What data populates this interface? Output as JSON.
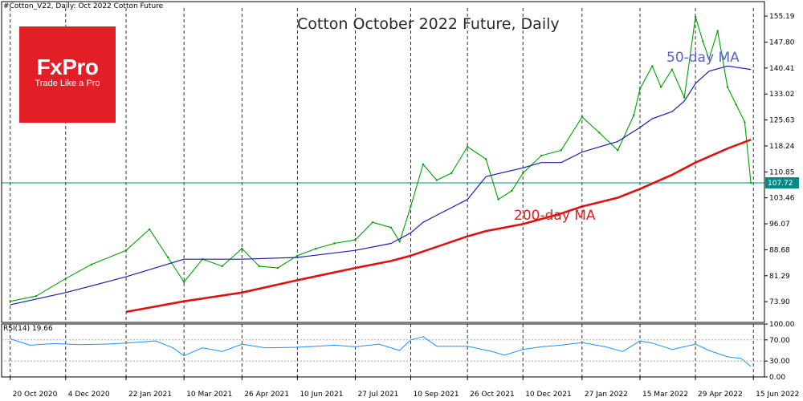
{
  "header": {
    "symbol_line": "#Cotton_V22, Daily:  Oct 2022 Cotton Future"
  },
  "logo": {
    "word": "FxPro",
    "tagline": "Trade Like a Pro",
    "color": "#e41e26"
  },
  "labels": {
    "title": "Cotton October 2022 Future, Daily",
    "ma50": "50-day MA",
    "ma200": "200-day MA",
    "rsi": "RSI(14) 19.66",
    "current_price": "107.72"
  },
  "colors": {
    "price": "#00a000",
    "ma50": "#1c1cb4",
    "ma200": "#e01010",
    "rsi": "#1e90ff",
    "hline": "#008b8b"
  },
  "chart_data": {
    "type": "line",
    "title": "Cotton October 2022 Future, Daily",
    "x_ticks": [
      "20 Oct 2020",
      "4 Dec 2020",
      "22 Jan 2021",
      "10 Mar 2021",
      "26 Apr 2021",
      "10 Jun 2021",
      "27 Jul 2021",
      "10 Sep 2021",
      "26 Oct 2021",
      "10 Dec 2021",
      "27 Jan 2022",
      "15 Mar 2022",
      "29 Apr 2022",
      "15 Jun 2022"
    ],
    "price_ticks": [
      155.19,
      147.8,
      140.41,
      133.02,
      125.63,
      118.24,
      110.85,
      103.46,
      96.07,
      88.68,
      81.29,
      73.9
    ],
    "price_ylim": [
      68.0,
      157.5
    ],
    "current_price": 107.72,
    "rsi_ticks": [
      100.0,
      70.0,
      30.0,
      0.0
    ],
    "rsi_ylim": [
      0,
      100
    ],
    "series": [
      {
        "name": "Cotton",
        "x": [
          "2020-10-20",
          "2020-11-10",
          "2020-12-04",
          "2020-12-25",
          "2021-01-22",
          "2021-02-10",
          "2021-02-25",
          "2021-03-10",
          "2021-03-25",
          "2021-04-10",
          "2021-04-26",
          "2021-05-10",
          "2021-05-25",
          "2021-06-10",
          "2021-06-25",
          "2021-07-10",
          "2021-07-27",
          "2021-08-10",
          "2021-08-25",
          "2021-09-01",
          "2021-09-10",
          "2021-09-20",
          "2021-10-01",
          "2021-10-13",
          "2021-10-26",
          "2021-11-10",
          "2021-11-20",
          "2021-12-01",
          "2021-12-10",
          "2021-12-25",
          "2022-01-10",
          "2022-01-27",
          "2022-02-10",
          "2022-02-25",
          "2022-03-10",
          "2022-03-15",
          "2022-03-25",
          "2022-04-01",
          "2022-04-10",
          "2022-04-20",
          "2022-04-29",
          "2022-05-05",
          "2022-05-10",
          "2022-05-17",
          "2022-05-25",
          "2022-06-01",
          "2022-06-08",
          "2022-06-13"
        ],
        "values": [
          74.0,
          75.5,
          80.5,
          84.5,
          88.5,
          94.5,
          86.5,
          79.5,
          86.0,
          84.0,
          89.0,
          84.0,
          83.5,
          87.0,
          89.0,
          90.5,
          91.5,
          96.5,
          95.0,
          91.0,
          101.0,
          113.0,
          108.5,
          110.5,
          118.0,
          114.5,
          103.0,
          105.5,
          110.5,
          115.5,
          117.0,
          126.5,
          122.0,
          117.0,
          127.0,
          134.5,
          141.0,
          135.0,
          140.0,
          132.0,
          155.0,
          148.0,
          143.0,
          151.0,
          135.0,
          130.0,
          125.0,
          107.72
        ]
      },
      {
        "name": "50-day MA",
        "x": [
          "2020-10-20",
          "2020-12-04",
          "2021-01-22",
          "2021-03-10",
          "2021-04-26",
          "2021-06-10",
          "2021-07-27",
          "2021-08-25",
          "2021-09-10",
          "2021-09-20",
          "2021-10-01",
          "2021-10-26",
          "2021-11-10",
          "2021-12-10",
          "2021-12-25",
          "2022-01-10",
          "2022-01-27",
          "2022-02-25",
          "2022-03-15",
          "2022-03-25",
          "2022-04-10",
          "2022-04-20",
          "2022-04-29",
          "2022-05-10",
          "2022-05-25",
          "2022-06-13"
        ],
        "values": [
          73.0,
          76.5,
          81.0,
          86.0,
          86.0,
          86.5,
          88.5,
          90.5,
          93.5,
          96.5,
          98.5,
          103.0,
          109.5,
          112.0,
          113.5,
          113.5,
          116.5,
          119.5,
          123.5,
          126.0,
          128.0,
          131.0,
          136.0,
          139.5,
          141.0,
          140.0
        ]
      },
      {
        "name": "200-day MA",
        "x": [
          "2021-01-22",
          "2021-03-10",
          "2021-04-26",
          "2021-06-10",
          "2021-07-27",
          "2021-08-25",
          "2021-09-10",
          "2021-10-01",
          "2021-10-26",
          "2021-11-10",
          "2021-12-10",
          "2022-01-10",
          "2022-01-27",
          "2022-02-25",
          "2022-03-15",
          "2022-04-10",
          "2022-04-29",
          "2022-05-25",
          "2022-06-13"
        ],
        "values": [
          71.0,
          74.0,
          76.5,
          80.0,
          83.5,
          85.5,
          87.0,
          89.5,
          92.5,
          94.0,
          96.0,
          99.0,
          101.0,
          103.5,
          106.0,
          110.0,
          113.5,
          117.5,
          120.0
        ]
      },
      {
        "name": "RSI(14)",
        "x": [
          "2020-10-20",
          "2020-11-05",
          "2020-11-25",
          "2020-12-15",
          "2021-01-05",
          "2021-01-22",
          "2021-02-15",
          "2021-03-01",
          "2021-03-10",
          "2021-03-25",
          "2021-04-10",
          "2021-04-26",
          "2021-05-15",
          "2021-06-10",
          "2021-06-25",
          "2021-07-10",
          "2021-07-27",
          "2021-08-15",
          "2021-09-01",
          "2021-09-10",
          "2021-09-20",
          "2021-10-01",
          "2021-10-26",
          "2021-11-15",
          "2021-11-25",
          "2021-12-10",
          "2021-12-25",
          "2022-01-10",
          "2022-01-27",
          "2022-02-15",
          "2022-03-01",
          "2022-03-15",
          "2022-03-25",
          "2022-04-10",
          "2022-04-29",
          "2022-05-10",
          "2022-05-25",
          "2022-06-05",
          "2022-06-13"
        ],
        "values": [
          72,
          60,
          63,
          61,
          62,
          64,
          68,
          55,
          40,
          55,
          48,
          62,
          55,
          56,
          58,
          60,
          57,
          62,
          50,
          70,
          76,
          58,
          58,
          48,
          41,
          52,
          57,
          60,
          65,
          57,
          48,
          68,
          64,
          52,
          62,
          50,
          38,
          35,
          19.66
        ]
      }
    ]
  }
}
